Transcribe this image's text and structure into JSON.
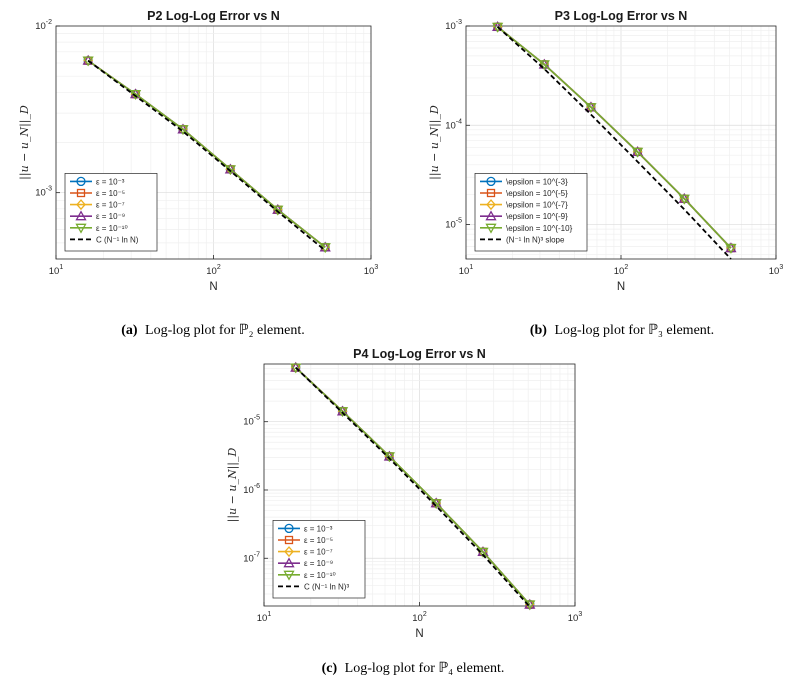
{
  "chart_data": [
    {
      "type": "line",
      "title": "P2 Log-Log Error vs N",
      "xlabel": "N",
      "ylabel": "||u − u_N||_D",
      "xscale": "log",
      "yscale": "log",
      "xlim": [
        10,
        1000
      ],
      "ylim": [
        0.0004,
        0.01
      ],
      "grid": true,
      "legend_position": "lower-left",
      "x_ticks": [
        {
          "base": "10",
          "exp": "1"
        },
        {
          "base": "10",
          "exp": "2"
        },
        {
          "base": "10",
          "exp": "3"
        }
      ],
      "y_ticks": [
        {
          "value": 0.001,
          "base": "10",
          "exp": "-3"
        },
        {
          "value": 0.01,
          "base": "10",
          "exp": "-2"
        }
      ],
      "x": [
        16,
        32,
        64,
        128,
        256,
        512
      ],
      "series": [
        {
          "name": "ε = 10⁻³",
          "marker": "circle",
          "color": "#0072BD",
          "values": [
            0.0062,
            0.0039,
            0.0024,
            0.00138,
            0.00079,
            0.00047
          ]
        },
        {
          "name": "ε = 10⁻⁵",
          "marker": "square",
          "color": "#D95319",
          "values": [
            0.0062,
            0.0039,
            0.0024,
            0.00138,
            0.00079,
            0.00047
          ]
        },
        {
          "name": "ε = 10⁻⁷",
          "marker": "diamond",
          "color": "#EDB120",
          "values": [
            0.0062,
            0.0039,
            0.0024,
            0.00138,
            0.00079,
            0.00047
          ]
        },
        {
          "name": "ε = 10⁻⁹",
          "marker": "triangle-up",
          "color": "#7E2F8E",
          "values": [
            0.0062,
            0.0039,
            0.0024,
            0.00138,
            0.00079,
            0.00047
          ]
        },
        {
          "name": "ε = 10⁻¹⁰",
          "marker": "triangle-down",
          "color": "#77AC30",
          "values": [
            0.0062,
            0.0039,
            0.0024,
            0.00138,
            0.00079,
            0.00047
          ]
        },
        {
          "name": "C (N⁻¹ ln N)",
          "marker": "none",
          "color": "#000000",
          "dashed": true,
          "values": [
            0.0062,
            0.0038,
            0.00233,
            0.00135,
            0.00077,
            0.00045
          ]
        }
      ]
    },
    {
      "type": "line",
      "title": "P3 Log-Log Error vs N",
      "xlabel": "N",
      "ylabel": "||u − u_N||_D",
      "xscale": "log",
      "yscale": "log",
      "xlim": [
        10,
        1000
      ],
      "ylim": [
        4.5e-06,
        0.001
      ],
      "grid": true,
      "legend_position": "lower-left",
      "x_ticks": [
        {
          "base": "10",
          "exp": "1"
        },
        {
          "base": "10",
          "exp": "2"
        },
        {
          "base": "10",
          "exp": "3"
        }
      ],
      "y_ticks": [
        {
          "value": 1e-05,
          "base": "10",
          "exp": "-5"
        },
        {
          "value": 0.0001,
          "base": "10",
          "exp": "-4"
        },
        {
          "value": 0.001,
          "base": "10",
          "exp": "-3"
        }
      ],
      "x": [
        16,
        32,
        64,
        128,
        256,
        512
      ],
      "series": [
        {
          "name": "\\epsilon = 10^{-3}",
          "marker": "circle",
          "color": "#0072BD",
          "values": [
            0.00098,
            0.00041,
            0.000152,
            5.4e-05,
            1.82e-05,
            5.8e-06
          ]
        },
        {
          "name": "\\epsilon = 10^{-5}",
          "marker": "square",
          "color": "#D95319",
          "values": [
            0.00098,
            0.00041,
            0.000152,
            5.4e-05,
            1.82e-05,
            5.8e-06
          ]
        },
        {
          "name": "\\epsilon = 10^{-7}",
          "marker": "diamond",
          "color": "#EDB120",
          "values": [
            0.00098,
            0.00041,
            0.000152,
            5.4e-05,
            1.82e-05,
            5.8e-06
          ]
        },
        {
          "name": "\\epsilon = 10^{-9}",
          "marker": "triangle-up",
          "color": "#7E2F8E",
          "values": [
            0.00098,
            0.00041,
            0.000152,
            5.4e-05,
            1.82e-05,
            5.8e-06
          ]
        },
        {
          "name": "\\epsilon = 10^{-10}",
          "marker": "triangle-down",
          "color": "#77AC30",
          "values": [
            0.00098,
            0.00041,
            0.000152,
            5.4e-05,
            1.82e-05,
            5.8e-06
          ]
        },
        {
          "name": "(N⁻¹ ln N)³ slope",
          "marker": "none",
          "color": "#000000",
          "dashed": true,
          "values": [
            0.00098,
            0.00037,
            0.000128,
            4.3e-05,
            1.42e-05,
            4.5e-06
          ]
        }
      ]
    },
    {
      "type": "line",
      "title": "P4 Log-Log Error vs N",
      "xlabel": "N",
      "ylabel": "||u − u_N||_D",
      "xscale": "log",
      "yscale": "log",
      "xlim": [
        10,
        1000
      ],
      "ylim": [
        2e-08,
        7e-05
      ],
      "grid": true,
      "legend_position": "lower-left",
      "x_ticks": [
        {
          "base": "10",
          "exp": "1"
        },
        {
          "base": "10",
          "exp": "2"
        },
        {
          "base": "10",
          "exp": "3"
        }
      ],
      "y_ticks": [
        {
          "value": 1e-07,
          "base": "10",
          "exp": "-7"
        },
        {
          "value": 1e-06,
          "base": "10",
          "exp": "-6"
        },
        {
          "value": 1e-05,
          "base": "10",
          "exp": "-5"
        }
      ],
      "x": [
        16,
        32,
        64,
        128,
        256,
        512
      ],
      "series": [
        {
          "name": "ε = 10⁻³",
          "marker": "circle",
          "color": "#0072BD",
          "values": [
            6.2e-05,
            1.42e-05,
            3.1e-06,
            6.4e-07,
            1.24e-07,
            2.1e-08
          ]
        },
        {
          "name": "ε = 10⁻⁵",
          "marker": "square",
          "color": "#D95319",
          "values": [
            6.2e-05,
            1.42e-05,
            3.1e-06,
            6.4e-07,
            1.24e-07,
            2.1e-08
          ]
        },
        {
          "name": "ε = 10⁻⁷",
          "marker": "diamond",
          "color": "#EDB120",
          "values": [
            6.2e-05,
            1.42e-05,
            3.1e-06,
            6.4e-07,
            1.24e-07,
            2.1e-08
          ]
        },
        {
          "name": "ε = 10⁻⁹",
          "marker": "triangle-up",
          "color": "#7E2F8E",
          "values": [
            6.2e-05,
            1.42e-05,
            3.1e-06,
            6.4e-07,
            1.24e-07,
            2.1e-08
          ]
        },
        {
          "name": "ε = 10⁻¹⁰",
          "marker": "triangle-down",
          "color": "#77AC30",
          "values": [
            6.2e-05,
            1.42e-05,
            3.1e-06,
            6.4e-07,
            1.24e-07,
            2.1e-08
          ]
        },
        {
          "name": "C (N⁻¹ ln N)³",
          "marker": "none",
          "color": "#000000",
          "dashed": true,
          "values": [
            6.2e-05,
            1.35e-05,
            2.9e-06,
            5.8e-07,
            1.12e-07,
            1.95e-08
          ]
        }
      ]
    }
  ],
  "captions": [
    {
      "tag": "(a)",
      "text": "Log-log plot for ℙ₂ element."
    },
    {
      "tag": "(b)",
      "text": "Log-log plot for ℙ₃ element."
    },
    {
      "tag": "(c)",
      "text": "Log-log plot for ℙ₄ element."
    }
  ]
}
